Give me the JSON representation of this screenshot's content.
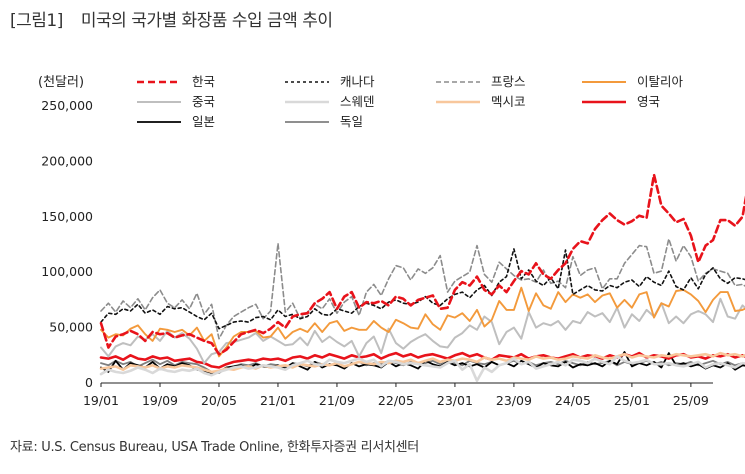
{
  "figure": {
    "label": "[그림1]",
    "title": "미국의 국가별 화장품 수입 금액 추이",
    "source": "자료: U.S. Census Bureau, USA Trade Online, 한화투자증권 리서치센터"
  },
  "chart_data": {
    "type": "line",
    "ylabel": "(천달러)",
    "xlabel": "",
    "ylim": [
      0,
      250000
    ],
    "yticks": [
      0,
      50000,
      100000,
      150000,
      200000,
      250000
    ],
    "ytick_labels": [
      "0",
      "50,000",
      "100,000",
      "150,000",
      "200,000",
      "250,000"
    ],
    "xtick_labels": [
      "19/01",
      "19/09",
      "20/05",
      "21/01",
      "21/09",
      "22/05",
      "23/01",
      "23/09",
      "24/05",
      "25/01",
      "25/09"
    ],
    "x_start": "2019-01",
    "x_end": "2025-12",
    "legend_position": "top",
    "series": [
      {
        "name": "한국",
        "color": "#e8131b",
        "dash": "7,4",
        "width": 2.6,
        "values": [
          54000,
          32000,
          42000,
          44000,
          47000,
          44000,
          38000,
          46000,
          44000,
          45000,
          41000,
          43000,
          44000,
          41000,
          38000,
          36000,
          26000,
          30000,
          37000,
          44000,
          46000,
          48000,
          45000,
          49000,
          55000,
          50000,
          60000,
          62000,
          63000,
          72000,
          76000,
          82000,
          67000,
          78000,
          82000,
          68000,
          73000,
          72000,
          74000,
          70000,
          78000,
          76000,
          70000,
          75000,
          77000,
          79000,
          67000,
          68000,
          84000,
          91000,
          88000,
          96000,
          84000,
          80000,
          88000,
          82000,
          92000,
          101000,
          98000,
          108000,
          98000,
          94000,
          102000,
          108000,
          121000,
          128000,
          126000,
          139000,
          147000,
          153000,
          147000,
          143000,
          146000,
          151000,
          149000,
          188000,
          160000,
          153000,
          145000,
          148000,
          133000,
          109000,
          124000,
          129000,
          147000,
          147000,
          142000,
          150000,
          188000,
          155000,
          164000,
          173000,
          135000,
          155000,
          178000,
          200000,
          144000,
          140000,
          132000,
          126000,
          123000,
          161000
        ]
      },
      {
        "name": "캐나다",
        "color": "#111111",
        "dash": "3,3",
        "width": 1.6,
        "values": [
          55000,
          63000,
          62000,
          67000,
          65000,
          71000,
          63000,
          66000,
          62000,
          69000,
          67000,
          68000,
          64000,
          60000,
          57000,
          63000,
          49000,
          52000,
          55000,
          56000,
          55000,
          59000,
          60000,
          57000,
          66000,
          60000,
          62000,
          58000,
          60000,
          67000,
          62000,
          61000,
          67000,
          65000,
          63000,
          69000,
          72000,
          70000,
          67000,
          73000,
          75000,
          72000,
          71000,
          73000,
          78000,
          72000,
          70000,
          76000,
          80000,
          82000,
          77000,
          84000,
          88000,
          79000,
          91000,
          96000,
          121000,
          94000,
          102000,
          92000,
          88000,
          95000,
          85000,
          120000,
          80000,
          84000,
          88000,
          84000,
          83000,
          88000,
          86000,
          91000,
          93000,
          87000,
          96000,
          91000,
          88000,
          101000,
          87000,
          84000,
          95000,
          85000,
          98000,
          104000,
          94000,
          90000,
          95000,
          94000,
          92000,
          86000,
          87000,
          90000,
          88000,
          84000,
          86000,
          88000,
          78000,
          87000,
          85000,
          94000,
          97000,
          108000
        ]
      },
      {
        "name": "프랑스",
        "color": "#8c8c8c",
        "dash": "5,3",
        "width": 1.6,
        "values": [
          65000,
          72000,
          64000,
          74000,
          68000,
          76000,
          66000,
          77000,
          84000,
          72000,
          68000,
          75000,
          67000,
          81000,
          62000,
          71000,
          40000,
          52000,
          60000,
          64000,
          68000,
          71000,
          58000,
          65000,
          126000,
          64000,
          72000,
          58000,
          64000,
          71000,
          67000,
          76000,
          63000,
          73000,
          78000,
          61000,
          82000,
          89000,
          79000,
          94000,
          106000,
          104000,
          93000,
          103000,
          99000,
          104000,
          115000,
          82000,
          92000,
          96000,
          100000,
          124000,
          98000,
          91000,
          109000,
          103000,
          97000,
          93000,
          94000,
          91000,
          102000,
          90000,
          92000,
          86000,
          114000,
          97000,
          102000,
          104000,
          85000,
          94000,
          94000,
          108000,
          116000,
          124000,
          123000,
          99000,
          101000,
          130000,
          110000,
          124000,
          114000,
          92000,
          99000,
          103000,
          101000,
          99000,
          88000,
          89000,
          85000,
          84000,
          95000,
          89000,
          87000,
          104000,
          86000,
          75000,
          87000,
          84000,
          77000,
          75000,
          78000,
          91000
        ]
      },
      {
        "name": "이탈리아",
        "color": "#f39a3c",
        "dash": "",
        "width": 1.9,
        "values": [
          48000,
          41000,
          44000,
          43000,
          49000,
          52000,
          44000,
          38000,
          49000,
          48000,
          46000,
          48000,
          43000,
          50000,
          38000,
          44000,
          24000,
          32000,
          42000,
          46000,
          46000,
          47000,
          41000,
          42000,
          50000,
          40000,
          46000,
          49000,
          46000,
          54000,
          46000,
          54000,
          56000,
          47000,
          50000,
          48000,
          48000,
          56000,
          50000,
          46000,
          57000,
          54000,
          50000,
          49000,
          62000,
          53000,
          48000,
          61000,
          59000,
          63000,
          56000,
          66000,
          51000,
          57000,
          74000,
          66000,
          66000,
          86000,
          65000,
          81000,
          70000,
          67000,
          82000,
          73000,
          80000,
          77000,
          80000,
          73000,
          79000,
          81000,
          68000,
          75000,
          68000,
          80000,
          82000,
          59000,
          72000,
          69000,
          83000,
          84000,
          80000,
          74000,
          64000,
          75000,
          82000,
          82000,
          65000,
          66000,
          69000,
          74000,
          81000,
          80000,
          72000,
          79000,
          78000,
          79000,
          69000,
          70000,
          58000,
          50000,
          57000,
          77000
        ]
      },
      {
        "name": "중국",
        "color": "#bfbfbf",
        "dash": "",
        "width": 2.0,
        "values": [
          32000,
          24000,
          33000,
          36000,
          34000,
          42000,
          39000,
          44000,
          38000,
          47000,
          41000,
          45000,
          40000,
          31000,
          18000,
          26000,
          28000,
          36000,
          37000,
          39000,
          41000,
          45000,
          38000,
          42000,
          38000,
          34000,
          35000,
          41000,
          34000,
          47000,
          37000,
          42000,
          37000,
          33000,
          38000,
          24000,
          36000,
          42000,
          27000,
          49000,
          36000,
          31000,
          37000,
          41000,
          44000,
          38000,
          33000,
          32000,
          41000,
          45000,
          52000,
          48000,
          60000,
          55000,
          35000,
          46000,
          50000,
          40000,
          64000,
          50000,
          54000,
          52000,
          56000,
          48000,
          56000,
          54000,
          64000,
          60000,
          63000,
          55000,
          68000,
          50000,
          62000,
          56000,
          66000,
          60000,
          72000,
          54000,
          60000,
          54000,
          62000,
          65000,
          62000,
          55000,
          76000,
          60000,
          58000,
          70000,
          64000,
          55000,
          46000,
          36000,
          45000,
          33000,
          36000,
          45000,
          47000,
          58000,
          62000,
          60000,
          73000,
          65000
        ]
      },
      {
        "name": "스웨덴",
        "color": "#d9d9d9",
        "dash": "",
        "width": 2.6,
        "values": [
          8000,
          12000,
          10000,
          9000,
          11000,
          14000,
          12000,
          9000,
          13000,
          11000,
          10000,
          12000,
          11000,
          13000,
          9000,
          7000,
          10000,
          12000,
          14000,
          15000,
          13000,
          14000,
          16000,
          15000,
          14000,
          12000,
          16000,
          18000,
          20000,
          17000,
          16000,
          21000,
          19000,
          18000,
          20000,
          22000,
          19000,
          21000,
          15000,
          20000,
          19000,
          17000,
          18000,
          17000,
          16000,
          15000,
          14000,
          18000,
          20000,
          12000,
          17000,
          2000,
          14000,
          10000,
          16000,
          18000,
          22000,
          17000,
          19000,
          13000,
          15000,
          17000,
          19000,
          16000,
          21000,
          20000,
          18000,
          22000,
          19000,
          17000,
          24000,
          20000,
          18000,
          19000,
          21000,
          17000,
          17000,
          18000,
          16000,
          15000,
          17000,
          19000,
          14000,
          17000,
          18000,
          16000,
          14000,
          18000,
          17000,
          16000,
          15000,
          3000,
          16000,
          2000,
          1000,
          3000,
          4000,
          2000,
          3000,
          12000,
          5000,
          6000
        ]
      },
      {
        "name": "멕시코",
        "color": "#f8c79c",
        "dash": "",
        "width": 2.6,
        "values": [
          13000,
          14000,
          15000,
          12000,
          16000,
          15000,
          14000,
          16000,
          13000,
          15000,
          14000,
          16000,
          15000,
          14000,
          12000,
          10000,
          11000,
          13000,
          12000,
          14000,
          15000,
          13000,
          16000,
          14000,
          15000,
          16000,
          14000,
          17000,
          16000,
          15000,
          17000,
          16000,
          18000,
          15000,
          17000,
          19000,
          18000,
          17000,
          19000,
          18000,
          20000,
          19000,
          21000,
          18000,
          20000,
          22000,
          19000,
          21000,
          20000,
          22000,
          21000,
          19000,
          23000,
          21000,
          22000,
          20000,
          23000,
          22000,
          21000,
          24000,
          22000,
          23000,
          21000,
          22000,
          24000,
          23000,
          22000,
          25000,
          23000,
          22000,
          24000,
          26000,
          23000,
          25000,
          24000,
          23000,
          25000,
          24000,
          26000,
          25000,
          24000,
          25000,
          26000,
          24000,
          27000,
          25000,
          26000,
          24000,
          27000,
          26000,
          25000,
          28000,
          26000,
          27000,
          25000,
          28000,
          26000,
          27000,
          25000,
          28000,
          27000,
          26000
        ]
      },
      {
        "name": "영국",
        "color": "#e8131b",
        "dash": "",
        "width": 2.6,
        "values": [
          23000,
          22000,
          24000,
          21000,
          25000,
          22000,
          21000,
          24000,
          22000,
          23000,
          20000,
          21000,
          22000,
          19000,
          18000,
          15000,
          14000,
          17000,
          19000,
          20000,
          21000,
          20000,
          22000,
          21000,
          22000,
          20000,
          23000,
          24000,
          22000,
          25000,
          23000,
          26000,
          24000,
          22000,
          25000,
          23000,
          24000,
          26000,
          22000,
          25000,
          27000,
          24000,
          26000,
          23000,
          25000,
          26000,
          24000,
          22000,
          25000,
          27000,
          24000,
          26000,
          23000,
          21000,
          25000,
          24000,
          23000,
          26000,
          22000,
          24000,
          25000,
          23000,
          22000,
          24000,
          26000,
          23000,
          25000,
          24000,
          22000,
          25000,
          23000,
          26000,
          24000,
          27000,
          23000,
          25000,
          24000,
          22000,
          25000,
          26000,
          23000,
          24000,
          22000,
          25000,
          24000,
          26000,
          23000,
          25000,
          22000,
          24000,
          23000,
          22000,
          25000,
          23000,
          21000,
          24000,
          22000,
          23000,
          20000,
          22000,
          21000,
          26000
        ]
      },
      {
        "name": "일본",
        "color": "#000000",
        "dash": "",
        "width": 1.8,
        "values": [
          14000,
          10000,
          20000,
          12000,
          18000,
          16000,
          14000,
          19000,
          13000,
          17000,
          15000,
          18000,
          16000,
          12000,
          11000,
          9000,
          10000,
          14000,
          15000,
          16000,
          13000,
          17000,
          15000,
          14000,
          16000,
          13000,
          18000,
          15000,
          12000,
          19000,
          14000,
          17000,
          16000,
          13000,
          18000,
          15000,
          17000,
          16000,
          14000,
          19000,
          15000,
          18000,
          16000,
          13000,
          20000,
          17000,
          15000,
          19000,
          16000,
          18000,
          15000,
          17000,
          14000,
          19000,
          16000,
          18000,
          15000,
          20000,
          17000,
          14000,
          18000,
          16000,
          15000,
          19000,
          14000,
          17000,
          16000,
          18000,
          15000,
          20000,
          17000,
          28000,
          15000,
          18000,
          16000,
          19000,
          14000,
          27000,
          16000,
          18000,
          15000,
          17000,
          13000,
          16000,
          14000,
          18000,
          12000,
          16000,
          15000,
          17000,
          13000,
          18000,
          14000,
          16000,
          12000,
          17000,
          13000,
          15000,
          11000,
          16000,
          12000,
          15000
        ]
      },
      {
        "name": "독일",
        "color": "#7f7f7f",
        "dash": "",
        "width": 1.8,
        "values": [
          18000,
          16000,
          20000,
          17000,
          19000,
          15000,
          18000,
          21000,
          17000,
          20000,
          16000,
          19000,
          18000,
          17000,
          14000,
          10000,
          9000,
          13000,
          15000,
          17000,
          16000,
          18000,
          15000,
          17000,
          16000,
          14000,
          18000,
          17000,
          15000,
          19000,
          17000,
          16000,
          18000,
          15000,
          17000,
          19000,
          16000,
          18000,
          17000,
          20000,
          18000,
          16000,
          19000,
          17000,
          18000,
          20000,
          17000,
          19000,
          18000,
          16000,
          20000,
          18000,
          17000,
          19000,
          16000,
          18000,
          20000,
          17000,
          19000,
          16000,
          18000,
          19000,
          17000,
          20000,
          18000,
          16000,
          19000,
          17000,
          18000,
          20000,
          16000,
          19000,
          17000,
          18000,
          20000,
          17000,
          19000,
          16000,
          18000,
          17000,
          19000,
          16000,
          18000,
          20000,
          17000,
          19000,
          16000,
          18000,
          17000,
          19000,
          16000,
          18000,
          15000,
          17000,
          16000,
          18000,
          15000,
          17000,
          16000,
          18000,
          17000,
          18000
        ]
      }
    ]
  }
}
